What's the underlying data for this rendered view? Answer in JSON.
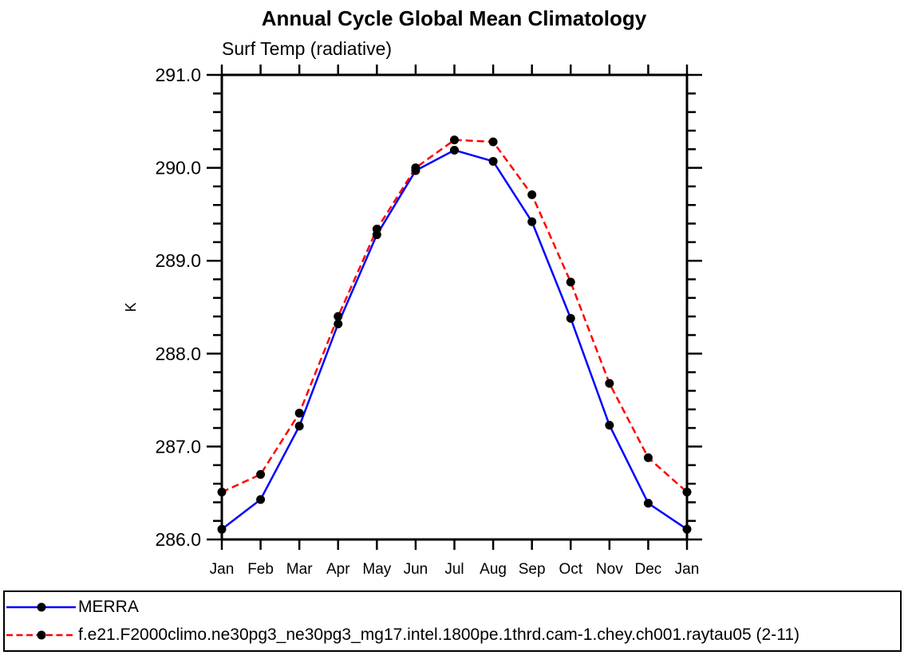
{
  "chart_data": {
    "type": "line",
    "title": "Annual Cycle Global Mean Climatology",
    "subtitle": "Surf Temp (radiative)",
    "ylabel": "K",
    "ylim": [
      286.0,
      291.0
    ],
    "ytick_step": 1.0,
    "yminor_step": 0.2,
    "ytick_labels": [
      "286.0",
      "287.0",
      "288.0",
      "289.0",
      "290.0",
      "291.0"
    ],
    "x_labels": [
      "Jan",
      "Feb",
      "Mar",
      "Apr",
      "May",
      "Jun",
      "Jul",
      "Aug",
      "Sep",
      "Oct",
      "Nov",
      "Dec",
      "Jan"
    ],
    "grid": false,
    "legend_position": "bottom",
    "axis_color": "#000000",
    "marker_color": "#000000",
    "series": [
      {
        "name": "MERRA",
        "color": "#0000ff",
        "style": "solid",
        "values": [
          286.11,
          286.43,
          287.22,
          288.32,
          289.28,
          289.97,
          290.19,
          290.07,
          289.42,
          288.38,
          287.23,
          286.39,
          286.11
        ]
      },
      {
        "name": "f.e21.F2000climo.ne30pg3_ne30pg3_mg17.intel.1800pe.1thrd.cam-1.chey.ch001.raytau05 (2-11)",
        "color": "#ff0000",
        "style": "dashed",
        "values": [
          286.51,
          286.7,
          287.36,
          288.4,
          289.34,
          290.0,
          290.3,
          290.28,
          289.71,
          288.77,
          287.68,
          286.88,
          286.51
        ]
      }
    ]
  }
}
